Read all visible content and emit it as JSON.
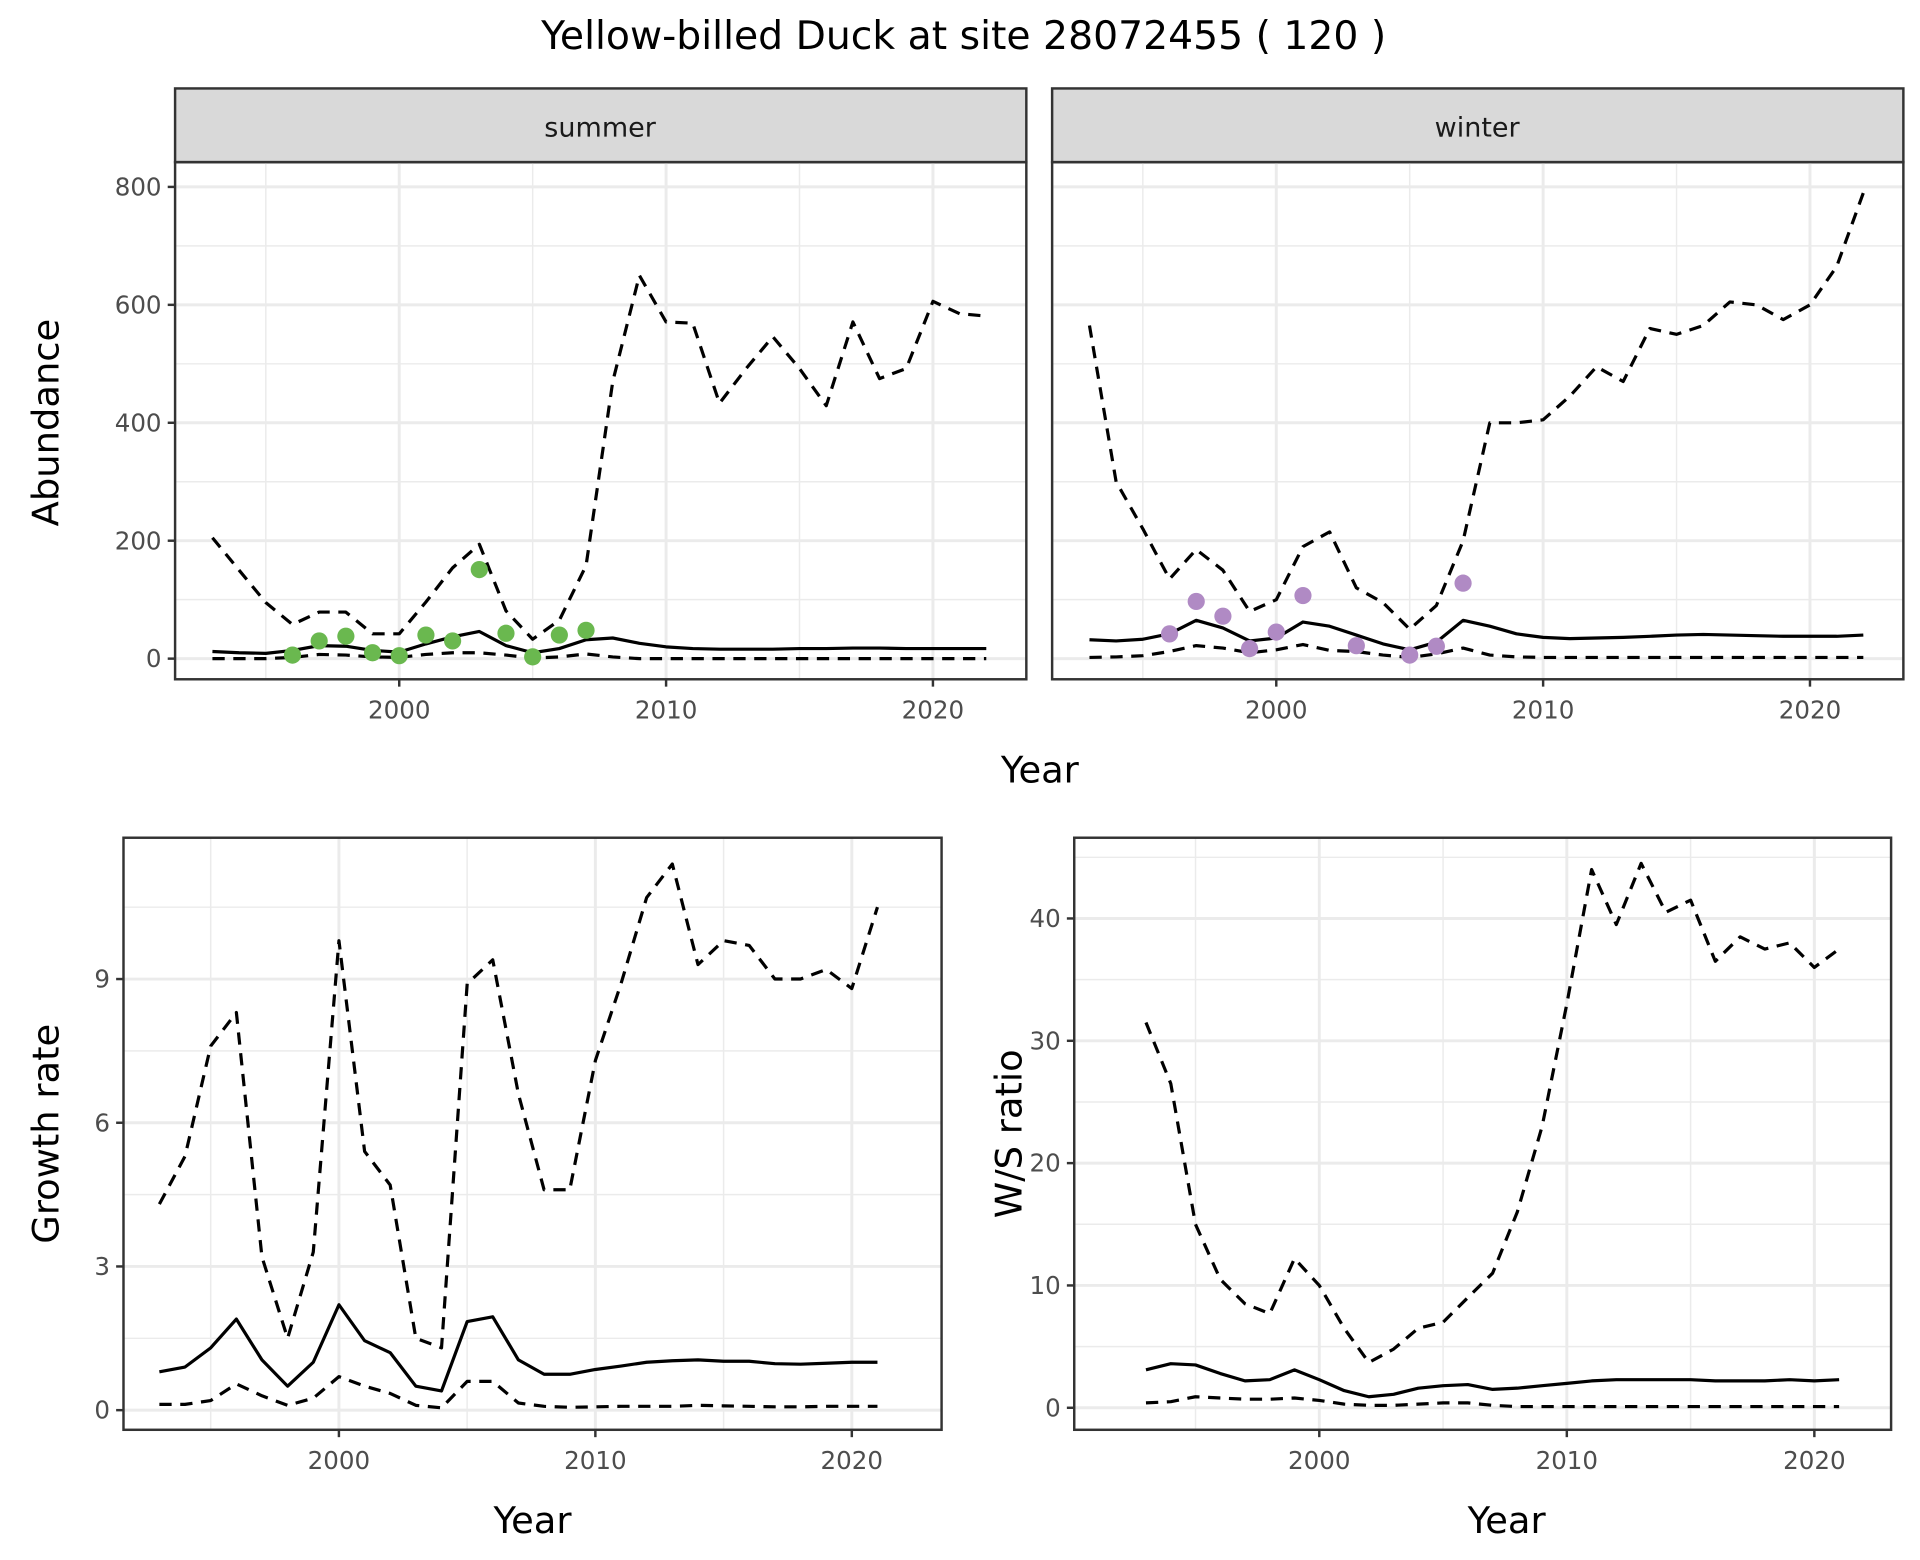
{
  "title": "Yellow-billed Duck at site 28072455 ( 120 )",
  "colors": {
    "summer_points": "#6ab84f",
    "winter_points": "#b08ac4",
    "lines": "#000000",
    "strip_bg": "#d9d9d9",
    "grid": "#ebebeb"
  },
  "chart_data": [
    {
      "type": "line",
      "panel": "summer",
      "strip_label": "summer",
      "xlabel": "Year",
      "ylabel": "Abundance",
      "xlim": [
        1991.6,
        2023.5
      ],
      "ylim": [
        -35,
        842
      ],
      "xticks": [
        2000,
        2010,
        2020
      ],
      "yticks": [
        0,
        200,
        400,
        600,
        800
      ],
      "show_yticks": true,
      "grid": true,
      "x": [
        1993,
        1994,
        1995,
        1996,
        1997,
        1998,
        1999,
        2000,
        2001,
        2002,
        2003,
        2004,
        2005,
        2006,
        2007,
        2008,
        2009,
        2010,
        2011,
        2012,
        2013,
        2014,
        2015,
        2016,
        2017,
        2018,
        2019,
        2020,
        2021,
        2022
      ],
      "series": [
        {
          "style": "solid",
          "values": [
            12,
            10,
            9,
            14,
            22,
            21,
            14,
            11,
            25,
            37,
            46,
            22,
            10,
            17,
            32,
            35,
            26,
            20,
            17,
            16,
            16,
            16,
            17,
            17,
            18,
            18,
            17,
            17,
            17,
            17
          ]
        },
        {
          "style": "dashed",
          "values": [
            205,
            150,
            95,
            58,
            79,
            79,
            42,
            42,
            96,
            154,
            194,
            81,
            33,
            65,
            158,
            470,
            650,
            571,
            569,
            433,
            492,
            546,
            492,
            429,
            571,
            475,
            492,
            606,
            585,
            581
          ]
        },
        {
          "style": "dashed",
          "values": [
            0,
            0,
            0,
            2,
            7,
            6,
            3,
            2,
            7,
            10,
            10,
            6,
            1,
            3,
            8,
            3,
            0,
            0,
            0,
            0,
            0,
            0,
            0,
            0,
            0,
            0,
            0,
            0,
            0,
            0
          ]
        }
      ],
      "points": {
        "x": [
          1996,
          1997,
          1998,
          1999,
          2000,
          2001,
          2002,
          2003,
          2004,
          2005,
          2006,
          2007
        ],
        "y": [
          6,
          30,
          38,
          10,
          5,
          40,
          30,
          151,
          43,
          3,
          40,
          48
        ],
        "color": "#6ab84f"
      }
    },
    {
      "type": "line",
      "panel": "winter",
      "strip_label": "winter",
      "xlabel": "Year",
      "ylabel": "Abundance",
      "xlim": [
        1991.6,
        2023.5
      ],
      "ylim": [
        -35,
        842
      ],
      "xticks": [
        2000,
        2010,
        2020
      ],
      "yticks": [
        0,
        200,
        400,
        600,
        800
      ],
      "show_yticks": false,
      "grid": true,
      "x": [
        1993,
        1994,
        1995,
        1996,
        1997,
        1998,
        1999,
        2000,
        2001,
        2002,
        2003,
        2004,
        2005,
        2006,
        2007,
        2008,
        2009,
        2010,
        2011,
        2012,
        2013,
        2014,
        2015,
        2016,
        2017,
        2018,
        2019,
        2020,
        2021,
        2022
      ],
      "series": [
        {
          "style": "solid",
          "values": [
            32,
            30,
            33,
            42,
            65,
            52,
            30,
            35,
            62,
            55,
            40,
            25,
            15,
            28,
            65,
            55,
            42,
            36,
            34,
            35,
            36,
            38,
            40,
            41,
            40,
            39,
            38,
            38,
            38,
            40
          ]
        },
        {
          "style": "dashed",
          "values": [
            565,
            300,
            220,
            135,
            185,
            150,
            80,
            100,
            190,
            215,
            120,
            95,
            50,
            90,
            200,
            400,
            400,
            405,
            445,
            495,
            470,
            560,
            550,
            565,
            605,
            600,
            575,
            600,
            665,
            790
          ]
        },
        {
          "style": "dashed",
          "values": [
            2,
            3,
            5,
            12,
            22,
            18,
            10,
            15,
            24,
            14,
            12,
            6,
            2,
            8,
            18,
            6,
            3,
            2,
            2,
            2,
            2,
            2,
            2,
            2,
            2,
            2,
            2,
            2,
            2,
            2
          ]
        }
      ],
      "points": {
        "x": [
          1996,
          1997,
          1998,
          1999,
          2000,
          2001,
          2003,
          2005,
          2006,
          2007
        ],
        "y": [
          42,
          97,
          72,
          17,
          45,
          107,
          22,
          6,
          21,
          128
        ],
        "color": "#b08ac4"
      }
    },
    {
      "type": "line",
      "panel": "growth",
      "xlabel": "Year",
      "ylabel": "Growth rate",
      "xlim": [
        1991.6,
        2023.5
      ],
      "ylim": [
        -0.41,
        11.95
      ],
      "xticks": [
        2000,
        2010,
        2020
      ],
      "yticks": [
        0,
        3,
        6,
        9
      ],
      "show_yticks": true,
      "grid": true,
      "x": [
        1993,
        1994,
        1995,
        1996,
        1997,
        1998,
        1999,
        2000,
        2001,
        2002,
        2003,
        2004,
        2005,
        2006,
        2007,
        2008,
        2009,
        2010,
        2011,
        2012,
        2013,
        2014,
        2015,
        2016,
        2017,
        2018,
        2019,
        2020,
        2021
      ],
      "series": [
        {
          "style": "solid",
          "values": [
            0.8,
            0.9,
            1.3,
            1.9,
            1.05,
            0.5,
            1.0,
            2.2,
            1.45,
            1.2,
            0.5,
            0.4,
            1.85,
            1.95,
            1.05,
            0.75,
            0.75,
            0.85,
            0.92,
            1.0,
            1.03,
            1.05,
            1.02,
            1.02,
            0.97,
            0.96,
            0.98,
            1.0,
            1.0
          ]
        },
        {
          "style": "dashed",
          "values": [
            4.3,
            5.3,
            7.6,
            8.3,
            3.2,
            1.5,
            3.3,
            9.8,
            5.4,
            4.7,
            1.5,
            1.3,
            8.9,
            9.4,
            6.6,
            4.6,
            4.6,
            7.3,
            8.9,
            10.7,
            11.4,
            9.3,
            9.8,
            9.7,
            9.0,
            9.0,
            9.2,
            8.8,
            10.5
          ]
        },
        {
          "style": "dashed",
          "values": [
            0.12,
            0.12,
            0.2,
            0.55,
            0.3,
            0.1,
            0.25,
            0.7,
            0.5,
            0.35,
            0.1,
            0.05,
            0.6,
            0.6,
            0.15,
            0.08,
            0.06,
            0.07,
            0.08,
            0.08,
            0.08,
            0.1,
            0.09,
            0.08,
            0.07,
            0.07,
            0.08,
            0.08,
            0.08
          ]
        }
      ]
    },
    {
      "type": "line",
      "panel": "ws",
      "xlabel": "Year",
      "ylabel": "W/S ratio",
      "xlim": [
        1990.1,
        2023.1
      ],
      "ylim": [
        -1.8,
        46.6
      ],
      "xticks": [
        2000,
        2010,
        2020
      ],
      "yticks": [
        0,
        10,
        20,
        30,
        40
      ],
      "show_yticks": true,
      "grid": true,
      "x": [
        1993,
        1994,
        1995,
        1996,
        1997,
        1998,
        1999,
        2000,
        2001,
        2002,
        2003,
        2004,
        2005,
        2006,
        2007,
        2008,
        2009,
        2010,
        2011,
        2012,
        2013,
        2014,
        2015,
        2016,
        2017,
        2018,
        2019,
        2020,
        2021
      ],
      "series": [
        {
          "style": "solid",
          "values": [
            3.1,
            3.6,
            3.5,
            2.8,
            2.2,
            2.3,
            3.1,
            2.3,
            1.4,
            0.9,
            1.1,
            1.6,
            1.8,
            1.9,
            1.5,
            1.6,
            1.8,
            2.0,
            2.2,
            2.3,
            2.3,
            2.3,
            2.3,
            2.2,
            2.2,
            2.2,
            2.3,
            2.2,
            2.3
          ]
        },
        {
          "style": "dashed",
          "values": [
            31.5,
            26.5,
            15,
            10.5,
            8.5,
            7.7,
            12.2,
            10,
            6.5,
            3.7,
            4.8,
            6.5,
            7,
            9,
            11,
            16,
            23,
            33,
            44,
            39.5,
            44.5,
            40.5,
            41.5,
            36.5,
            38.5,
            37.5,
            38,
            36,
            37.5
          ]
        },
        {
          "style": "dashed",
          "values": [
            0.4,
            0.5,
            0.9,
            0.8,
            0.7,
            0.7,
            0.8,
            0.6,
            0.3,
            0.2,
            0.2,
            0.3,
            0.4,
            0.4,
            0.2,
            0.1,
            0.1,
            0.1,
            0.1,
            0.1,
            0.1,
            0.1,
            0.1,
            0.1,
            0.1,
            0.1,
            0.1,
            0.1,
            0.1
          ]
        }
      ]
    }
  ],
  "top_xlabel": "Year"
}
